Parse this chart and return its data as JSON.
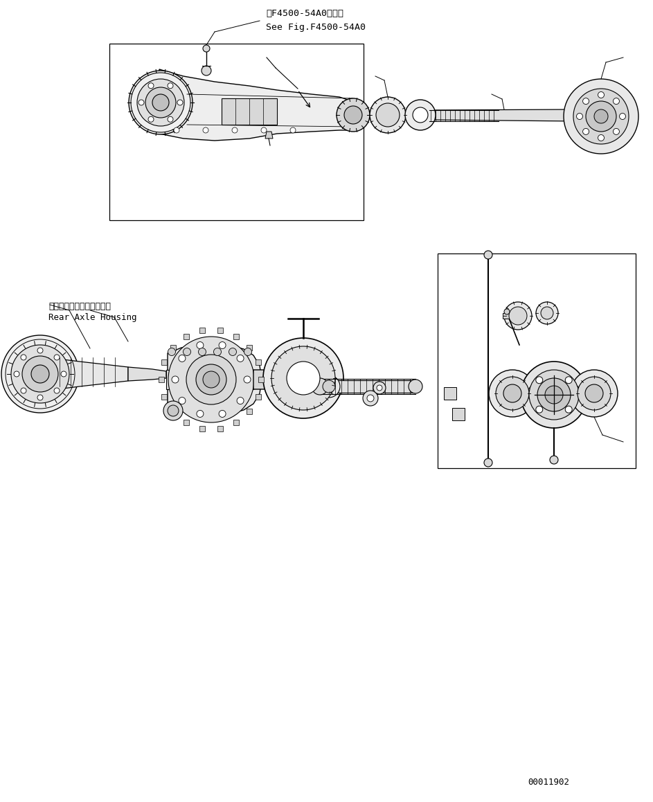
{
  "bg_color": "#ffffff",
  "line_color": "#000000",
  "text_color": "#000000",
  "annotation1_line1": "第F4500-54A0図参照",
  "annotation1_line2": "See Fig.F4500-54A0",
  "label_japanese": "リヤーアクスルハウジング",
  "label_english": "Rear Axle Housing",
  "part_number": "00011902",
  "figsize": [
    9.43,
    11.58
  ],
  "dpi": 100
}
